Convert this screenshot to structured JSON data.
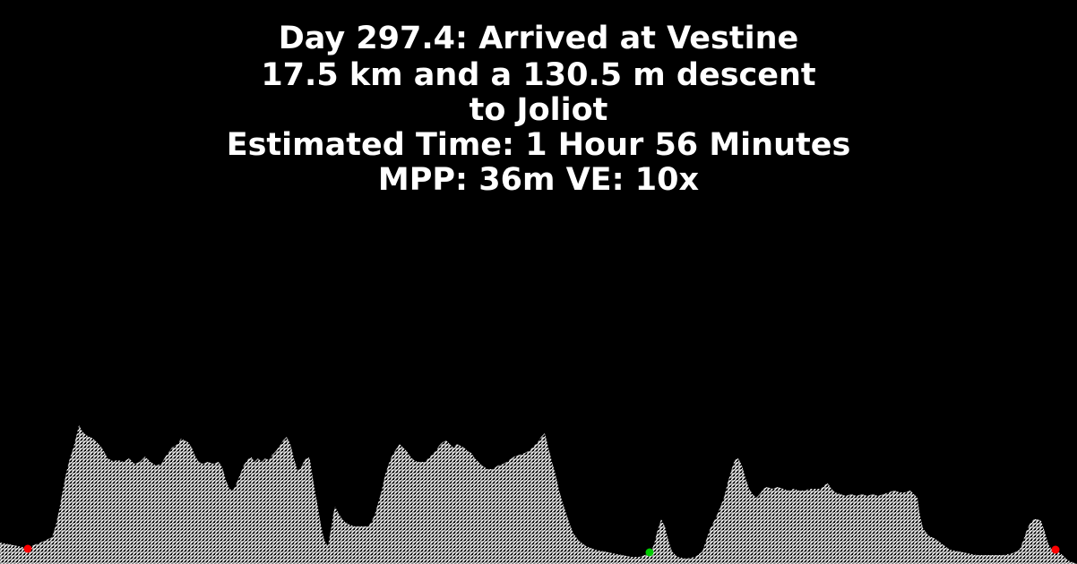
{
  "header": {
    "day_line": "Day 297.4: Arrived at Vestine",
    "distance_line": "17.5 km and a 130.5 m descent",
    "destination_line": "to Joliot",
    "time_line": "Estimated Time: 1 Hour 56 Minutes",
    "scale_line": "MPP: 36m VE: 10x"
  },
  "colors": {
    "background": "#000000",
    "text": "#ffffff",
    "terrain_fill": "#ffffff",
    "terrain_background": "#000000",
    "marker_start": "#ff0000",
    "marker_current": "#00cc00",
    "marker_end": "#ff0000"
  },
  "profile": {
    "markers": [
      {
        "name": "start-marker",
        "color_key": "marker_start"
      },
      {
        "name": "current-position-marker",
        "color_key": "marker_current"
      },
      {
        "name": "end-marker",
        "color_key": "marker_end"
      }
    ]
  }
}
